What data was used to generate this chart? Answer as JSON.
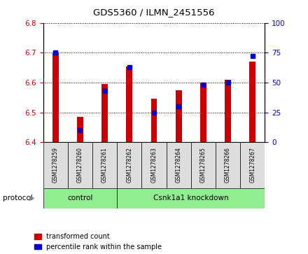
{
  "title": "GDS5360 / ILMN_2451556",
  "samples": [
    "GSM1278259",
    "GSM1278260",
    "GSM1278261",
    "GSM1278262",
    "GSM1278263",
    "GSM1278264",
    "GSM1278265",
    "GSM1278266",
    "GSM1278267"
  ],
  "red_values": [
    6.7,
    6.485,
    6.595,
    6.655,
    6.545,
    6.575,
    6.6,
    6.61,
    6.67
  ],
  "blue_values": [
    75,
    10,
    43,
    63,
    25,
    30,
    48,
    50,
    72
  ],
  "ylim_left": [
    6.4,
    6.8
  ],
  "ylim_right": [
    0,
    100
  ],
  "yticks_left": [
    6.4,
    6.5,
    6.6,
    6.7,
    6.8
  ],
  "yticks_right": [
    0,
    25,
    50,
    75,
    100
  ],
  "control_samples": 3,
  "protocol_label": "protocol",
  "red_color": "#CC0000",
  "blue_color": "#0000CC",
  "bar_width": 0.25,
  "base_value": 6.4,
  "legend_red": "transformed count",
  "legend_blue": "percentile rank within the sample",
  "tick_color_left": "#CC0000",
  "tick_color_right": "#0000CC",
  "grid_linestyle": "dotted",
  "label_bg": "#DDDDDD",
  "protocol_bg": "#90EE90",
  "fig_width": 4.4,
  "fig_height": 3.63,
  "dpi": 100
}
